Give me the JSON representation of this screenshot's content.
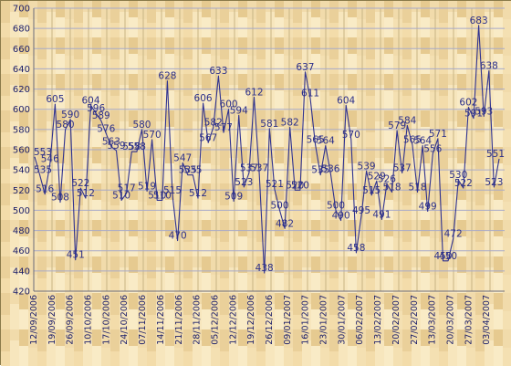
{
  "chart_data": {
    "type": "line",
    "title": "",
    "xlabel": "",
    "ylabel": "",
    "ylim": [
      420,
      700
    ],
    "yticks": [
      420,
      440,
      460,
      480,
      500,
      520,
      540,
      560,
      580,
      600,
      620,
      640,
      660,
      680,
      700
    ],
    "xtick_labels": [
      "12/09/2006",
      "19/09/2006",
      "26/09/2006",
      "10/10/2006",
      "17/10/2006",
      "24/10/2006",
      "07/11/2006",
      "14/11/2006",
      "21/11/2006",
      "28/11/2006",
      "05/12/2006",
      "12/12/2006",
      "19/12/2006",
      "26/12/2006",
      "09/01/2007",
      "16/01/2007",
      "23/01/2007",
      "30/01/2007",
      "06/02/2007",
      "13/02/2007",
      "20/02/2007",
      "27/02/2007",
      "13/03/2007",
      "20/03/2007",
      "27/03/2007",
      "03/04/2007"
    ],
    "grid": true,
    "colors": {
      "line": "#2f3290",
      "text": "#1a1d6a",
      "label": "#2b2f8a",
      "grid_h": "#a8aac8",
      "grid_v": "#c8b484",
      "background": "#f3deb0",
      "wood_dark": "#e4c88e",
      "wood_light": "#f8e8c2"
    },
    "series": [
      {
        "values": [
          553,
          535,
          516,
          546,
          605,
          508,
          580,
          590,
          451,
          522,
          512,
          604,
          596,
          589,
          576,
          563,
          559,
          510,
          517,
          558,
          558,
          580,
          519,
          570,
          510,
          510,
          628,
          515,
          470,
          547,
          535,
          535,
          512,
          606,
          567,
          582,
          633,
          577,
          600,
          509,
          594,
          523,
          537,
          612,
          537,
          438,
          581,
          521,
          500,
          482,
          582,
          520,
          520,
          637,
          611,
          565,
          535,
          564,
          536,
          500,
          490,
          604,
          570,
          458,
          495,
          539,
          515,
          529,
          491,
          526,
          518,
          579,
          537,
          584,
          565,
          518,
          564,
          499,
          556,
          571,
          450,
          450,
          472,
          530,
          522,
          602,
          591,
          683,
          593,
          638,
          523,
          551
        ]
      }
    ]
  }
}
